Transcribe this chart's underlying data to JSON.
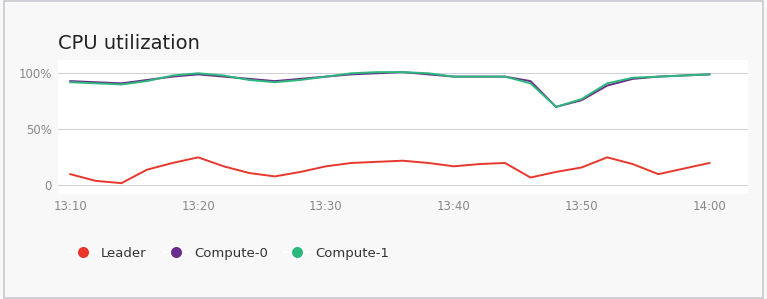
{
  "title": "CPU utilization",
  "title_fontsize": 14,
  "background_color": "#f8f8f8",
  "plot_bg_color": "#ffffff",
  "x_ticks_labels": [
    "13:10",
    "13:20",
    "13:30",
    "13:40",
    "13:50",
    "14:00"
  ],
  "x_values": [
    0,
    1,
    2,
    3,
    4,
    5,
    6,
    7,
    8,
    9,
    10,
    11,
    12,
    13,
    14,
    15,
    16,
    17,
    18,
    19,
    20,
    21,
    22,
    23,
    24,
    25
  ],
  "leader": [
    10,
    4,
    2,
    14,
    20,
    25,
    17,
    11,
    8,
    12,
    17,
    20,
    21,
    22,
    20,
    17,
    19,
    20,
    7,
    12,
    16,
    25,
    19,
    10,
    15,
    20
  ],
  "compute0": [
    93,
    92,
    91,
    94,
    97,
    99,
    97,
    95,
    93,
    95,
    97,
    99,
    100,
    101,
    99,
    97,
    97,
    97,
    93,
    70,
    76,
    89,
    95,
    97,
    98,
    99
  ],
  "compute1": [
    92,
    91,
    90,
    93,
    98,
    100,
    98,
    94,
    92,
    94,
    97,
    100,
    101,
    101,
    100,
    97,
    97,
    97,
    91,
    70,
    77,
    91,
    96,
    97,
    98,
    99
  ],
  "leader_color": "#e8372c",
  "compute0_color": "#6b2d8b",
  "compute1_color": "#2db87d",
  "grid_color": "#d0d0d8",
  "ylim": [
    -8,
    112
  ],
  "yticks": [
    0,
    50,
    100
  ],
  "ytick_labels": [
    "0",
    "50%",
    "100%"
  ],
  "border_color": "#c8c8d0"
}
